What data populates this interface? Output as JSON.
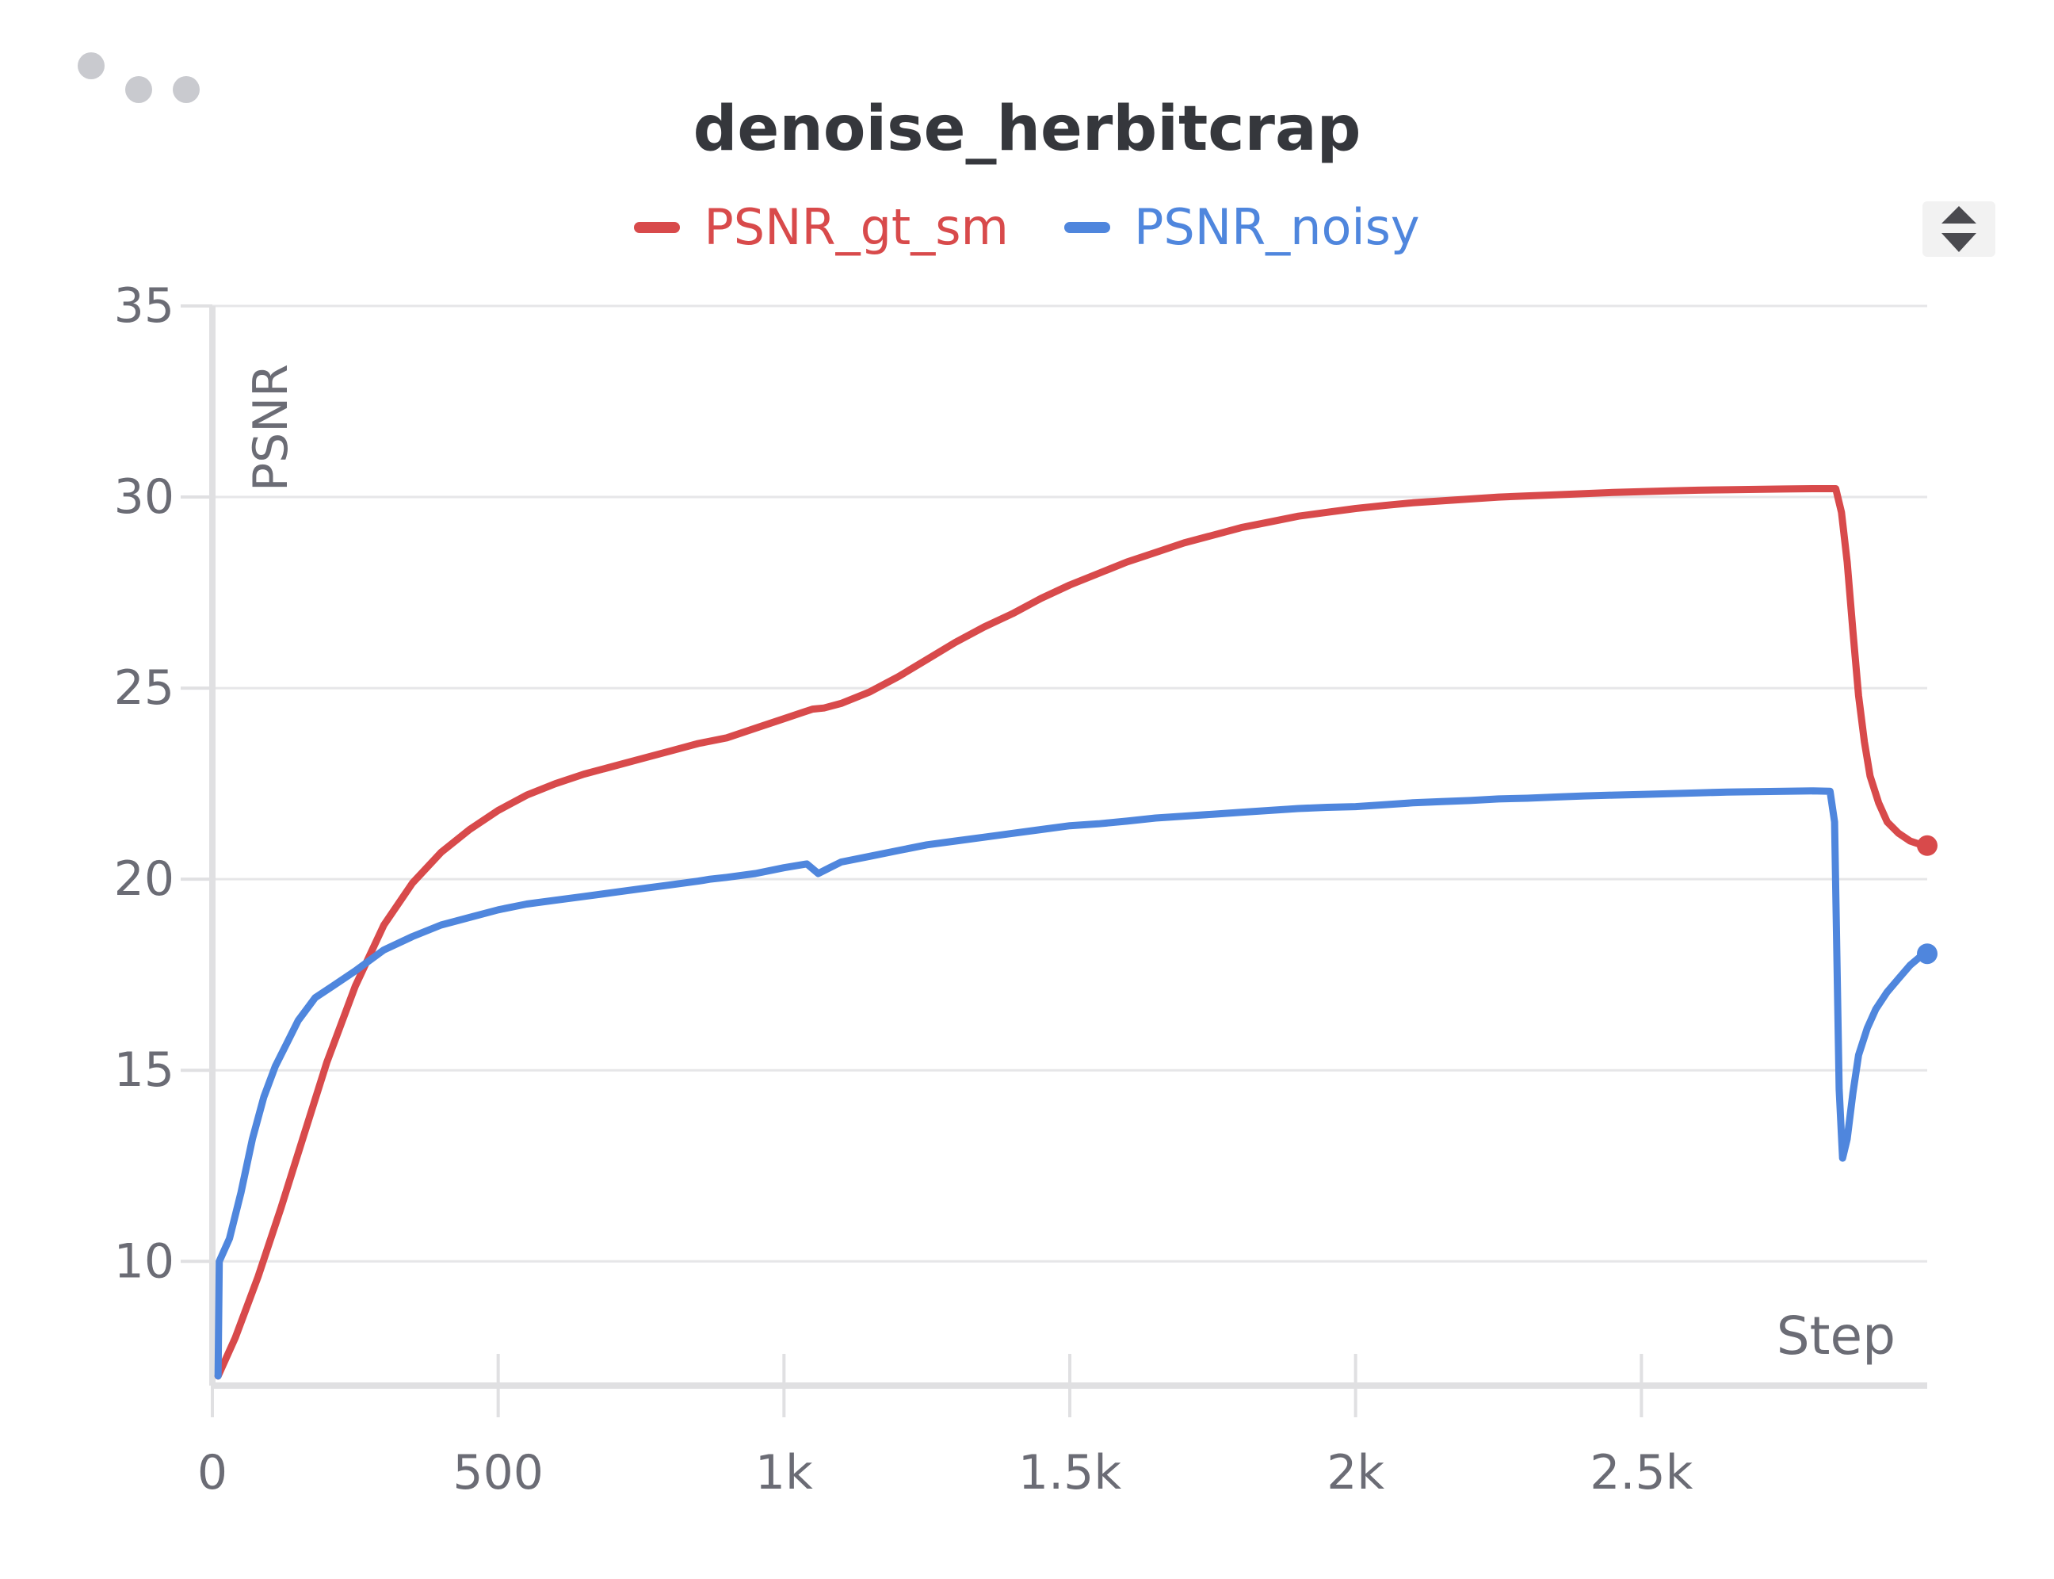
{
  "menu": {
    "icon": "more-dots-icon"
  },
  "legend_toggle": {
    "icon": "sort-arrows-icon"
  },
  "colors": {
    "PSNR_gt_sm": "#d84a4b",
    "PSNR_noisy": "#4f86dd",
    "grid": "#e6e6e8",
    "axis": "#e0e0e2",
    "text": "#6b6c75"
  },
  "chart_data": {
    "type": "line",
    "title": "denoise_herbitcrap",
    "xlabel": "Step",
    "ylabel": "PSNR",
    "xlim": [
      0,
      3000
    ],
    "ylim": [
      6.75,
      35
    ],
    "x_ticks": [
      0,
      500,
      1000,
      1500,
      2000,
      2500
    ],
    "x_tick_labels": [
      "0",
      "500",
      "1k",
      "1.5k",
      "2k",
      "2.5k"
    ],
    "y_ticks": [
      10,
      15,
      20,
      25,
      30,
      35
    ],
    "y_tick_labels": [
      "10",
      "15",
      "20",
      "25",
      "30",
      "35"
    ],
    "grid": true,
    "legend": "top-center",
    "series": [
      {
        "name": "PSNR_gt_sm",
        "color": "#d84a4b",
        "points": [
          [
            10,
            7
          ],
          [
            40,
            8
          ],
          [
            80,
            9.6
          ],
          [
            120,
            11.4
          ],
          [
            160,
            13.3
          ],
          [
            200,
            15.2
          ],
          [
            250,
            17.2
          ],
          [
            300,
            18.8
          ],
          [
            350,
            19.9
          ],
          [
            400,
            20.7
          ],
          [
            450,
            21.3
          ],
          [
            500,
            21.8
          ],
          [
            550,
            22.2
          ],
          [
            600,
            22.5
          ],
          [
            650,
            22.75
          ],
          [
            700,
            22.95
          ],
          [
            750,
            23.15
          ],
          [
            800,
            23.35
          ],
          [
            850,
            23.55
          ],
          [
            900,
            23.7
          ],
          [
            950,
            23.95
          ],
          [
            1000,
            24.2
          ],
          [
            1050,
            24.45
          ],
          [
            1070,
            24.48
          ],
          [
            1100,
            24.6
          ],
          [
            1150,
            24.9
          ],
          [
            1200,
            25.3
          ],
          [
            1250,
            25.75
          ],
          [
            1300,
            26.2
          ],
          [
            1350,
            26.6
          ],
          [
            1400,
            26.95
          ],
          [
            1450,
            27.35
          ],
          [
            1500,
            27.7
          ],
          [
            1550,
            28.0
          ],
          [
            1600,
            28.3
          ],
          [
            1650,
            28.55
          ],
          [
            1700,
            28.8
          ],
          [
            1750,
            29.0
          ],
          [
            1800,
            29.2
          ],
          [
            1850,
            29.35
          ],
          [
            1900,
            29.5
          ],
          [
            1950,
            29.6
          ],
          [
            2000,
            29.7
          ],
          [
            2050,
            29.78
          ],
          [
            2100,
            29.85
          ],
          [
            2150,
            29.9
          ],
          [
            2200,
            29.95
          ],
          [
            2250,
            30.0
          ],
          [
            2300,
            30.03
          ],
          [
            2350,
            30.06
          ],
          [
            2400,
            30.09
          ],
          [
            2450,
            30.12
          ],
          [
            2500,
            30.14
          ],
          [
            2550,
            30.16
          ],
          [
            2600,
            30.18
          ],
          [
            2650,
            30.19
          ],
          [
            2700,
            30.2
          ],
          [
            2750,
            30.21
          ],
          [
            2800,
            30.22
          ],
          [
            2840,
            30.22
          ],
          [
            2850,
            29.6
          ],
          [
            2860,
            28.3
          ],
          [
            2870,
            26.5
          ],
          [
            2880,
            24.8
          ],
          [
            2890,
            23.6
          ],
          [
            2900,
            22.7
          ],
          [
            2915,
            22.0
          ],
          [
            2930,
            21.5
          ],
          [
            2950,
            21.2
          ],
          [
            2970,
            21.0
          ],
          [
            2990,
            20.9
          ],
          [
            3000,
            20.88
          ]
        ]
      },
      {
        "name": "PSNR_noisy",
        "color": "#4f86dd",
        "points": [
          [
            10,
            7
          ],
          [
            12,
            10
          ],
          [
            30,
            10.6
          ],
          [
            50,
            11.8
          ],
          [
            70,
            13.2
          ],
          [
            90,
            14.3
          ],
          [
            110,
            15.1
          ],
          [
            130,
            15.7
          ],
          [
            150,
            16.3
          ],
          [
            180,
            16.9
          ],
          [
            210,
            17.2
          ],
          [
            250,
            17.6
          ],
          [
            300,
            18.15
          ],
          [
            350,
            18.5
          ],
          [
            400,
            18.8
          ],
          [
            450,
            19.0
          ],
          [
            500,
            19.2
          ],
          [
            550,
            19.35
          ],
          [
            600,
            19.45
          ],
          [
            650,
            19.55
          ],
          [
            700,
            19.65
          ],
          [
            750,
            19.75
          ],
          [
            800,
            19.85
          ],
          [
            850,
            19.95
          ],
          [
            870,
            20.0
          ],
          [
            900,
            20.05
          ],
          [
            950,
            20.15
          ],
          [
            1000,
            20.3
          ],
          [
            1040,
            20.4
          ],
          [
            1060,
            20.15
          ],
          [
            1080,
            20.3
          ],
          [
            1100,
            20.45
          ],
          [
            1150,
            20.6
          ],
          [
            1200,
            20.75
          ],
          [
            1250,
            20.9
          ],
          [
            1300,
            21.0
          ],
          [
            1350,
            21.1
          ],
          [
            1400,
            21.2
          ],
          [
            1450,
            21.3
          ],
          [
            1500,
            21.4
          ],
          [
            1550,
            21.45
          ],
          [
            1600,
            21.52
          ],
          [
            1650,
            21.6
          ],
          [
            1700,
            21.65
          ],
          [
            1750,
            21.7
          ],
          [
            1800,
            21.75
          ],
          [
            1850,
            21.8
          ],
          [
            1900,
            21.85
          ],
          [
            1950,
            21.88
          ],
          [
            2000,
            21.9
          ],
          [
            2050,
            21.95
          ],
          [
            2100,
            22.0
          ],
          [
            2150,
            22.03
          ],
          [
            2200,
            22.06
          ],
          [
            2250,
            22.1
          ],
          [
            2300,
            22.12
          ],
          [
            2350,
            22.15
          ],
          [
            2400,
            22.18
          ],
          [
            2450,
            22.2
          ],
          [
            2500,
            22.22
          ],
          [
            2550,
            22.24
          ],
          [
            2600,
            22.26
          ],
          [
            2650,
            22.28
          ],
          [
            2700,
            22.29
          ],
          [
            2750,
            22.3
          ],
          [
            2800,
            22.31
          ],
          [
            2830,
            22.3
          ],
          [
            2838,
            21.5
          ],
          [
            2842,
            18.0
          ],
          [
            2846,
            14.5
          ],
          [
            2852,
            12.7
          ],
          [
            2860,
            13.2
          ],
          [
            2870,
            14.4
          ],
          [
            2880,
            15.4
          ],
          [
            2895,
            16.1
          ],
          [
            2910,
            16.6
          ],
          [
            2930,
            17.05
          ],
          [
            2950,
            17.4
          ],
          [
            2970,
            17.75
          ],
          [
            2990,
            18.0
          ],
          [
            3000,
            18.05
          ]
        ]
      }
    ]
  }
}
